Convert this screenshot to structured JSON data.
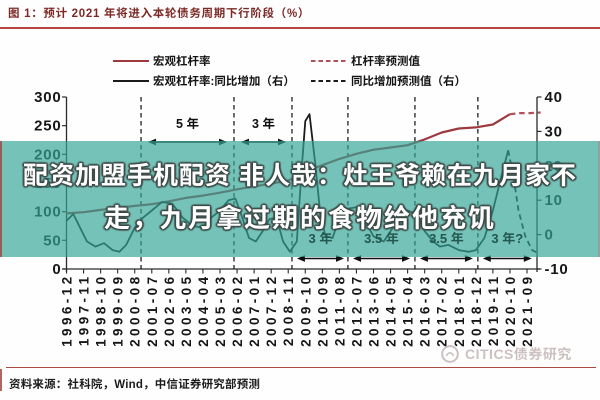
{
  "figure": {
    "title": "图 1：预计 2021 年将进入本轮债务周期下行阶段（%）",
    "source_note": "资料来源：社科院，Wind，中信证券研究部预测",
    "watermark": "CITICS债券研究"
  },
  "overlay_banner": {
    "line1": "配资加盟手机配资 非人哉：灶王爷赖在九月家不",
    "line2": "走，九月拿过期的食物给他充饥",
    "band_color": "#74c2b8"
  },
  "legend": {
    "items": [
      {
        "label": "宏观杠杆率",
        "line": "solid",
        "color": "#9e3940"
      },
      {
        "label": "杠杆率预测值",
        "line": "dashed",
        "color": "#b25059"
      },
      {
        "label": "宏观杠杆率:同比增加（右）",
        "line": "solid",
        "color": "#1b1b1b"
      },
      {
        "label": "同比增加预测值（右）",
        "line": "dashed",
        "color": "#1b1b1b"
      }
    ]
  },
  "chart_data": {
    "type": "line",
    "title": "预计 2021 年将进入本轮债务周期下行阶段（%）",
    "x_tick_labels": [
      "1996-12",
      "1997-11",
      "1998-10",
      "1999-09",
      "2000-08",
      "2001-07",
      "2002-06",
      "2003-05",
      "2004-04",
      "2005-03",
      "2006-02",
      "2007-01",
      "2007-12",
      "2008-11",
      "2009-10",
      "2010-09",
      "2011-08",
      "2012-07",
      "2013-06",
      "2014-05",
      "2015-04",
      "2016-03",
      "2017-02",
      "2018-01",
      "2018-12",
      "2019-11",
      "2020-10",
      "2021-09"
    ],
    "left_axis": {
      "ticks": [
        0,
        50,
        100,
        150,
        200,
        250,
        300
      ],
      "range": [
        0,
        300
      ]
    },
    "right_axis": {
      "ticks": [
        -10,
        0,
        10,
        20,
        30,
        40
      ],
      "range": [
        -10,
        40
      ]
    },
    "grid": false,
    "legend_position": "top",
    "series": [
      {
        "name": "宏观杠杆率",
        "axis": "left",
        "line": "solid",
        "color": "#9e3940",
        "width": 2.2,
        "points": [
          [
            0,
            97
          ],
          [
            1,
            99
          ],
          [
            2,
            103
          ],
          [
            3,
            107
          ],
          [
            4,
            110
          ],
          [
            5,
            113
          ],
          [
            6,
            118
          ],
          [
            7,
            124
          ],
          [
            8,
            128
          ],
          [
            9,
            133
          ],
          [
            10,
            139
          ],
          [
            11,
            144
          ],
          [
            12,
            149
          ],
          [
            13,
            154
          ],
          [
            14,
            170
          ],
          [
            15,
            181
          ],
          [
            16,
            192
          ],
          [
            17,
            201
          ],
          [
            18,
            208
          ],
          [
            19,
            212
          ],
          [
            20,
            216
          ],
          [
            21,
            226
          ],
          [
            22,
            238
          ],
          [
            23,
            245
          ],
          [
            24,
            247
          ],
          [
            25,
            252
          ],
          [
            26,
            270
          ]
        ]
      },
      {
        "name": "杠杆率预测值",
        "axis": "left",
        "line": "dashed",
        "color": "#b25059",
        "width": 2.2,
        "points": [
          [
            26,
            270
          ],
          [
            26.6,
            272
          ],
          [
            27.2,
            272
          ],
          [
            27.8,
            273
          ]
        ]
      },
      {
        "name": "宏观杠杆率:同比增加（右）",
        "axis": "right",
        "line": "solid",
        "color": "#1b1b1b",
        "width": 1.8,
        "points": [
          [
            0,
            4
          ],
          [
            0.4,
            6
          ],
          [
            0.8,
            2
          ],
          [
            1.2,
            -2
          ],
          [
            1.7,
            -3.5
          ],
          [
            2.2,
            -2.5
          ],
          [
            2.7,
            -4.5
          ],
          [
            3.1,
            -5
          ],
          [
            3.5,
            -3
          ],
          [
            4,
            2
          ],
          [
            4.5,
            5
          ],
          [
            5,
            7
          ],
          [
            5.6,
            9.5
          ],
          [
            6.2,
            9
          ],
          [
            6.8,
            5
          ],
          [
            7.4,
            2.5
          ],
          [
            8,
            2
          ],
          [
            8.5,
            5
          ],
          [
            9,
            7
          ],
          [
            9.5,
            10
          ],
          [
            9.9,
            10.5
          ],
          [
            10.3,
            5
          ],
          [
            10.7,
            -1
          ],
          [
            11.1,
            -2
          ],
          [
            11.5,
            1
          ],
          [
            11.9,
            4.5
          ],
          [
            12.3,
            5
          ],
          [
            12.7,
            -2
          ],
          [
            13.1,
            -5
          ],
          [
            13.5,
            -2
          ],
          [
            13.8,
            20
          ],
          [
            14,
            33
          ],
          [
            14.25,
            35
          ],
          [
            14.6,
            20
          ],
          [
            14.9,
            5
          ],
          [
            15.2,
            -0.5
          ],
          [
            15.6,
            -1
          ],
          [
            16,
            5
          ],
          [
            16.5,
            7.5
          ],
          [
            17,
            8
          ],
          [
            17.5,
            4
          ],
          [
            18,
            -0.5
          ],
          [
            18.6,
            -2
          ],
          [
            19,
            1
          ],
          [
            19.5,
            5
          ],
          [
            20,
            7
          ],
          [
            20.5,
            6
          ],
          [
            21,
            1
          ],
          [
            21.5,
            -2
          ],
          [
            21.9,
            -3.5
          ],
          [
            22.4,
            -3
          ],
          [
            23,
            -4.5
          ],
          [
            23.6,
            -5
          ],
          [
            24,
            -4.5
          ],
          [
            24.5,
            -1
          ],
          [
            25,
            7
          ],
          [
            25.5,
            17
          ],
          [
            25.9,
            24.5
          ]
        ]
      },
      {
        "name": "同比增加预测值（右）",
        "axis": "right",
        "line": "dashed",
        "color": "#1b1b1b",
        "width": 1.8,
        "points": [
          [
            25.9,
            24.5
          ],
          [
            26.2,
            17
          ],
          [
            26.5,
            7
          ],
          [
            26.9,
            -0.5
          ],
          [
            27.3,
            -4.5
          ],
          [
            27.7,
            -5.5
          ]
        ]
      }
    ],
    "dividers_idx": [
      4.37,
      9.82,
      13.22,
      16.5,
      20.43,
      24.12
    ],
    "annotations": [
      {
        "label": "5 年",
        "row": "top",
        "from": 4.78,
        "to": 9.41
      },
      {
        "label": "3 年",
        "row": "top",
        "from": 10.23,
        "to": 12.87
      },
      {
        "label": "3 年",
        "row": "bottom",
        "from": 13.51,
        "to": 16.27
      },
      {
        "label": "3.5 年",
        "row": "bottom",
        "from": 16.8,
        "to": 20.14
      },
      {
        "label": "3.5 年",
        "row": "bottom",
        "from": 20.72,
        "to": 23.83
      },
      {
        "label": "3 年?",
        "row": "bottom",
        "from": 24.41,
        "to": 27.28
      }
    ],
    "colors": {
      "band": "#74c2b8",
      "accent_red": "#b5453f",
      "axis": "#2b2b2b"
    }
  }
}
